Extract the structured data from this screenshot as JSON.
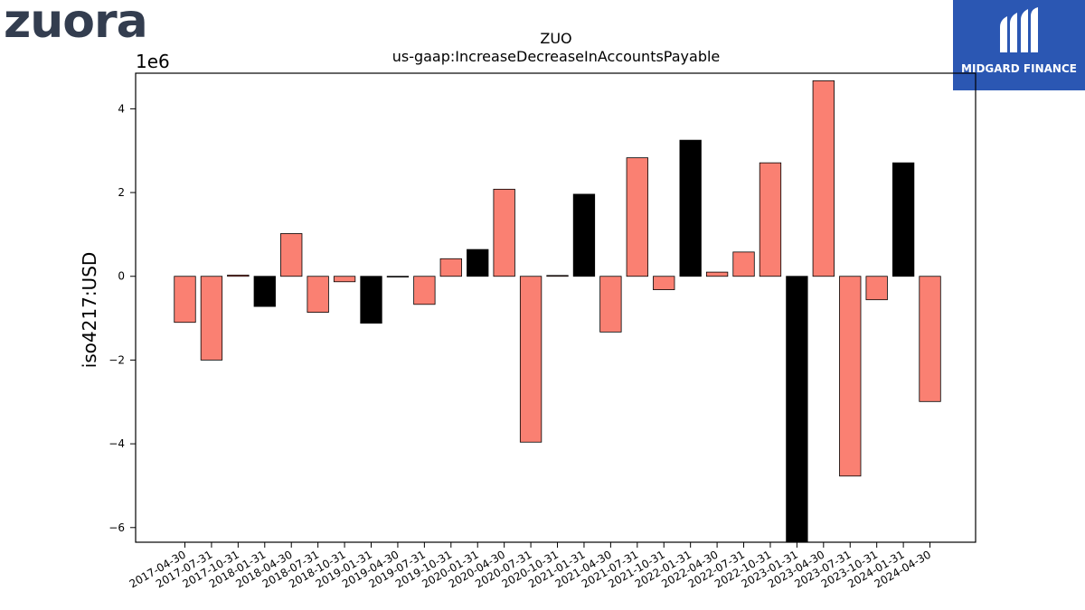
{
  "branding": {
    "left_logo": "zuora",
    "right_logo": "MIDGARD FINANCE"
  },
  "colors": {
    "primary_bar": "#fa8072",
    "highlight_bar": "#000000",
    "logo_left": "#333d4f",
    "logo_right_bg": "#2b57b3"
  },
  "chart_data": {
    "type": "bar",
    "title": "ZUO",
    "subtitle": "us-gaap:IncreaseDecreaseInAccountsPayable",
    "xlabel": "",
    "ylabel": "iso4217:USD",
    "scale_label": "1e6",
    "ylim": [
      -6.35,
      4.85
    ],
    "yticks": [
      -6,
      -4,
      -2,
      0,
      2,
      4
    ],
    "ytick_labels": [
      "−6",
      "−4",
      "−2",
      "0",
      "2",
      "4"
    ],
    "grid": false,
    "categories": [
      "2017-04-30",
      "2017-07-31",
      "2017-10-31",
      "2018-01-31",
      "2018-04-30",
      "2018-07-31",
      "2018-10-31",
      "2019-01-31",
      "2019-04-30",
      "2019-07-31",
      "2019-10-31",
      "2020-01-31",
      "2020-04-30",
      "2020-07-31",
      "2020-10-31",
      "2021-01-31",
      "2021-04-30",
      "2021-07-31",
      "2021-10-31",
      "2022-01-31",
      "2022-04-30",
      "2022-07-31",
      "2022-10-31",
      "2023-01-31",
      "2023-04-30",
      "2023-07-31",
      "2023-10-31",
      "2024-01-31",
      "2024-04-30"
    ],
    "values": [
      -1.1,
      -2.0,
      0.03,
      -0.72,
      1.02,
      -0.86,
      -0.13,
      -1.12,
      -0.01,
      -0.67,
      0.42,
      0.64,
      2.08,
      -3.96,
      0.02,
      1.96,
      -1.33,
      2.83,
      -0.32,
      3.25,
      0.1,
      0.58,
      2.71,
      -6.35,
      4.67,
      -4.77,
      -0.56,
      2.71,
      -2.99
    ],
    "highlight": [
      false,
      false,
      false,
      true,
      false,
      false,
      false,
      true,
      false,
      false,
      false,
      true,
      false,
      false,
      false,
      true,
      false,
      false,
      false,
      true,
      false,
      false,
      false,
      true,
      false,
      false,
      false,
      true,
      false
    ]
  }
}
